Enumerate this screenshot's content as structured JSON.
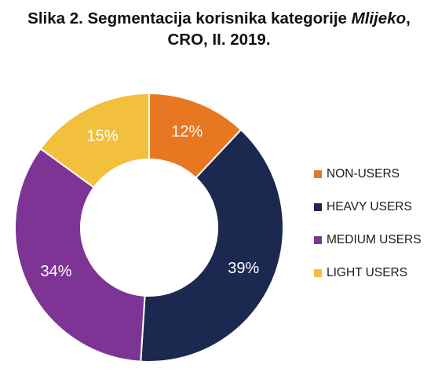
{
  "title": {
    "line1_prefix": "Slika 2. Segmentacija korisnika kategorije ",
    "line1_emphasis": "Mlijeko",
    "line1_suffix": ",",
    "line2": "CRO, II. 2019."
  },
  "chart_data": {
    "type": "pie",
    "donut": true,
    "title": "Slika 2. Segmentacija korisnika kategorije Mlijeko, CRO, II. 2019.",
    "legend_position": "right",
    "series": [
      {
        "name": "NON-USERS",
        "value": 12,
        "label": "12%",
        "color": "#e87722"
      },
      {
        "name": "HEAVY USERS",
        "value": 39,
        "label": "39%",
        "color": "#1b2850"
      },
      {
        "name": "MEDIUM USERS",
        "value": 34,
        "label": "34%",
        "color": "#7d3494"
      },
      {
        "name": "LIGHT USERS",
        "value": 15,
        "label": "15%",
        "color": "#f2c03c"
      }
    ]
  }
}
